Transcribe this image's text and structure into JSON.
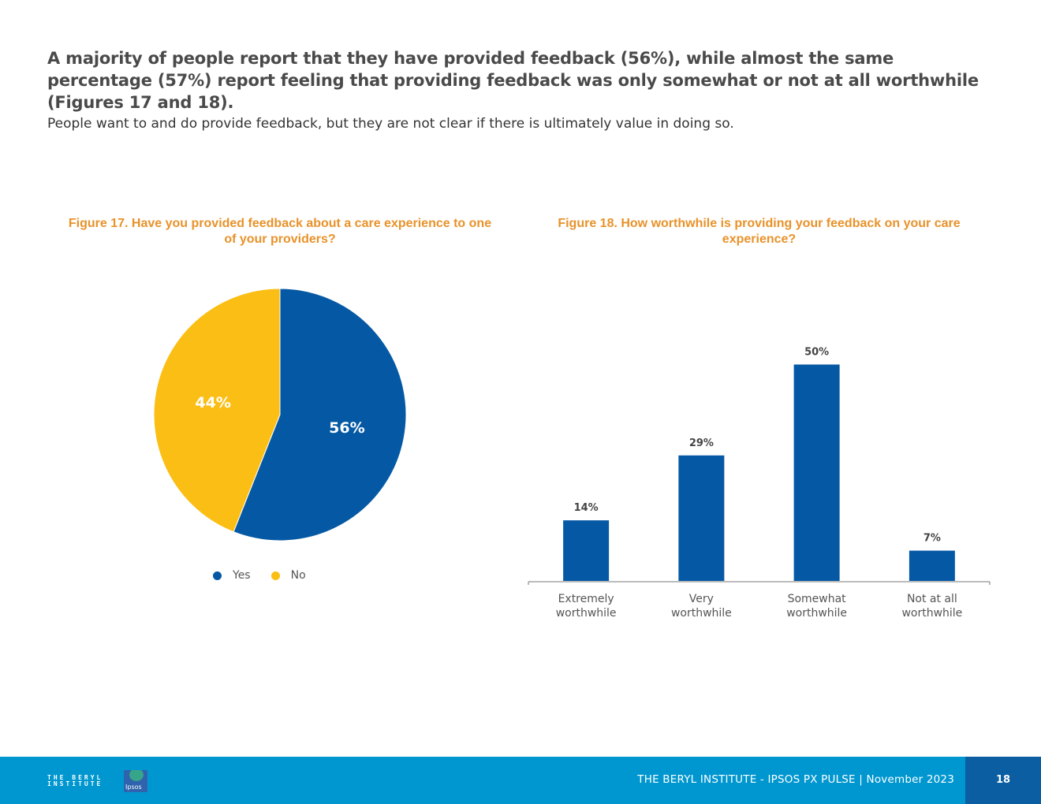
{
  "headline": "A majority of people report that they have provided feedback (56%), while almost the same percentage (57%) report feeling that providing feedback was only somewhat or not at all worthwhile (Figures 17 and 18).",
  "subtext": "People want to and do provide feedback, but they are not clear if there is ultimately value in doing so.",
  "colors": {
    "blue": "#0559a4",
    "yellow": "#fbbe14",
    "orange": "#e8922a",
    "footer": "#0097d0",
    "footer_dark": "#0b5ea2"
  },
  "chart_data": [
    {
      "type": "pie",
      "title": "Figure 17. Have you provided feedback about a care experience to one of your providers?",
      "categories": [
        "Yes",
        "No"
      ],
      "values": [
        56,
        44
      ],
      "labels": [
        "56%",
        "44%"
      ],
      "legend": "bottom"
    },
    {
      "type": "bar",
      "title": "Figure 18. How worthwhile is providing your feedback on your care experience?",
      "categories": [
        "Extremely worthwhile",
        "Very worthwhile",
        "Somewhat worthwhile",
        "Not at all worthwhile"
      ],
      "category_lines": [
        [
          "Extremely",
          "worthwhile"
        ],
        [
          "Very",
          "worthwhile"
        ],
        [
          "Somewhat",
          "worthwhile"
        ],
        [
          "Not at all",
          "worthwhile"
        ]
      ],
      "values": [
        14,
        29,
        50,
        7
      ],
      "labels": [
        "14%",
        "29%",
        "50%",
        "7%"
      ],
      "ylim": [
        0,
        55
      ],
      "grid": false
    }
  ],
  "footer": {
    "logo_text": "THE BERYL INSTITUTE",
    "partner_logo": "Ipsos",
    "text": "THE BERYL INSTITUTE - IPSOS PX PULSE | November 2023",
    "page_number": "18"
  }
}
